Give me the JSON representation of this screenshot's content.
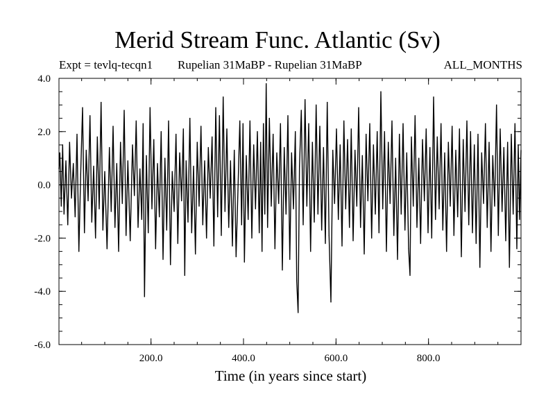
{
  "chart_data": {
    "type": "line",
    "title": "Merid Stream Func. Atlantic (Sv)",
    "subtitle_left": "Expt = tevlq-tecqn1",
    "subtitle_center": "Rupelian  31MaBP - Rupelian  31MaBP",
    "subtitle_right": "ALL_MONTHS",
    "xlabel": "Time (in years since start)",
    "ylabel": "",
    "xlim": [
      1,
      1000
    ],
    "ylim": [
      -6.0,
      4.0
    ],
    "xticks": [
      200,
      400,
      600,
      800
    ],
    "xtick_labels": [
      "200.0",
      "400.0",
      "600.0",
      "800.0"
    ],
    "yticks": [
      -6,
      -4,
      -2,
      0,
      2,
      4
    ],
    "ytick_labels": [
      "-6.0",
      "-4.0",
      "-2.0",
      "0.0",
      "2.0",
      "4.0"
    ],
    "reference_line_y": 0.0,
    "series": [
      {
        "name": "Merid Stream Func. Atlantic",
        "color": "#000000",
        "points": [
          [
            1,
            0.6
          ],
          [
            3,
            1.2
          ],
          [
            6,
            -0.8
          ],
          [
            9,
            1.5
          ],
          [
            12,
            -1.1
          ],
          [
            16,
            0.9
          ],
          [
            20,
            -1.5
          ],
          [
            24,
            1.6
          ],
          [
            28,
            -0.5
          ],
          [
            32,
            0.8
          ],
          [
            36,
            -1.2
          ],
          [
            40,
            1.9
          ],
          [
            44,
            -2.5
          ],
          [
            48,
            0.4
          ],
          [
            52,
            2.9
          ],
          [
            56,
            -1.8
          ],
          [
            60,
            1.3
          ],
          [
            64,
            -0.6
          ],
          [
            68,
            2.6
          ],
          [
            72,
            -1.4
          ],
          [
            76,
            0.7
          ],
          [
            80,
            -2.0
          ],
          [
            84,
            1.8
          ],
          [
            88,
            -0.9
          ],
          [
            92,
            3.1
          ],
          [
            96,
            -1.7
          ],
          [
            100,
            0.5
          ],
          [
            105,
            -2.4
          ],
          [
            110,
            1.4
          ],
          [
            114,
            -1.0
          ],
          [
            118,
            2.2
          ],
          [
            122,
            -1.6
          ],
          [
            126,
            0.8
          ],
          [
            130,
            -2.5
          ],
          [
            134,
            1.6
          ],
          [
            138,
            -0.7
          ],
          [
            142,
            2.8
          ],
          [
            146,
            -1.9
          ],
          [
            150,
            0.9
          ],
          [
            155,
            -2.1
          ],
          [
            160,
            1.5
          ],
          [
            164,
            -0.4
          ],
          [
            168,
            2.4
          ],
          [
            172,
            -1.6
          ],
          [
            176,
            0.6
          ],
          [
            180,
            -1.3
          ],
          [
            183,
            2.3
          ],
          [
            186,
            -4.2
          ],
          [
            190,
            1.1
          ],
          [
            194,
            -1.8
          ],
          [
            198,
            2.9
          ],
          [
            202,
            -0.9
          ],
          [
            206,
            1.7
          ],
          [
            210,
            -2.4
          ],
          [
            214,
            0.8
          ],
          [
            218,
            -1.2
          ],
          [
            222,
            2.0
          ],
          [
            226,
            -2.8
          ],
          [
            230,
            1.0
          ],
          [
            234,
            -1.7
          ],
          [
            238,
            2.4
          ],
          [
            242,
            -3.0
          ],
          [
            246,
            0.5
          ],
          [
            250,
            -1.0
          ],
          [
            254,
            1.9
          ],
          [
            258,
            -2.2
          ],
          [
            262,
            1.2
          ],
          [
            266,
            -0.6
          ],
          [
            270,
            2.1
          ],
          [
            273,
            -3.4
          ],
          [
            276,
            0.9
          ],
          [
            280,
            -1.4
          ],
          [
            284,
            2.5
          ],
          [
            288,
            -1.8
          ],
          [
            292,
            0.7
          ],
          [
            296,
            -2.6
          ],
          [
            300,
            1.6
          ],
          [
            304,
            -0.8
          ],
          [
            308,
            2.2
          ],
          [
            312,
            -1.5
          ],
          [
            316,
            0.9
          ],
          [
            320,
            -2.0
          ],
          [
            324,
            1.4
          ],
          [
            328,
            -0.5
          ],
          [
            332,
            1.8
          ],
          [
            336,
            -2.3
          ],
          [
            340,
            2.9
          ],
          [
            344,
            -1.2
          ],
          [
            348,
            2.6
          ],
          [
            352,
            -1.9
          ],
          [
            356,
            3.3
          ],
          [
            360,
            -1.0
          ],
          [
            364,
            2.1
          ],
          [
            368,
            -1.6
          ],
          [
            372,
            0.9
          ],
          [
            376,
            -2.3
          ],
          [
            380,
            1.3
          ],
          [
            384,
            -2.7
          ],
          [
            388,
            -0.2
          ],
          [
            392,
            2.4
          ],
          [
            396,
            -1.5
          ],
          [
            399,
            2.3
          ],
          [
            402,
            -2.9
          ],
          [
            406,
            1.1
          ],
          [
            410,
            -1.3
          ],
          [
            414,
            2.4
          ],
          [
            418,
            -2.0
          ],
          [
            422,
            1.5
          ],
          [
            426,
            -0.9
          ],
          [
            430,
            2.0
          ],
          [
            434,
            -1.8
          ],
          [
            437,
            1.6
          ],
          [
            440,
            -2.5
          ],
          [
            443,
            2.3
          ],
          [
            446,
            -1.1
          ],
          [
            449,
            3.8
          ],
          [
            452,
            -1.6
          ],
          [
            456,
            2.5
          ],
          [
            460,
            -0.8
          ],
          [
            464,
            1.9
          ],
          [
            468,
            -2.4
          ],
          [
            472,
            1.2
          ],
          [
            476,
            -0.7
          ],
          [
            480,
            2.3
          ],
          [
            484,
            -3.2
          ],
          [
            488,
            1.4
          ],
          [
            492,
            -1.1
          ],
          [
            496,
            2.6
          ],
          [
            500,
            -2.8
          ],
          [
            504,
            1.2
          ],
          [
            508,
            -0.9
          ],
          [
            512,
            2.0
          ],
          [
            515,
            -3.6
          ],
          [
            518,
            -4.8
          ],
          [
            521,
            0.7
          ],
          [
            525,
            2.8
          ],
          [
            529,
            -1.5
          ],
          [
            533,
            3.2
          ],
          [
            537,
            -0.8
          ],
          [
            541,
            2.3
          ],
          [
            545,
            -2.5
          ],
          [
            549,
            1.6
          ],
          [
            553,
            -1.4
          ],
          [
            557,
            3.0
          ],
          [
            561,
            -1.1
          ],
          [
            565,
            2.2
          ],
          [
            569,
            -1.7
          ],
          [
            573,
            1.4
          ],
          [
            577,
            -2.2
          ],
          [
            581,
            3.1
          ],
          [
            585,
            -1.9
          ],
          [
            589,
            -4.4
          ],
          [
            593,
            1.3
          ],
          [
            597,
            -0.7
          ],
          [
            601,
            2.1
          ],
          [
            605,
            -1.3
          ],
          [
            609,
            1.5
          ],
          [
            613,
            -2.3
          ],
          [
            617,
            2.4
          ],
          [
            621,
            -0.9
          ],
          [
            625,
            1.7
          ],
          [
            629,
            -1.6
          ],
          [
            633,
            2.1
          ],
          [
            637,
            -2.1
          ],
          [
            641,
            1.3
          ],
          [
            645,
            -0.8
          ],
          [
            649,
            2.9
          ],
          [
            653,
            -1.6
          ],
          [
            657,
            1.1
          ],
          [
            661,
            -2.6
          ],
          [
            665,
            1.9
          ],
          [
            669,
            -0.6
          ],
          [
            673,
            2.3
          ],
          [
            677,
            -2.0
          ],
          [
            681,
            1.5
          ],
          [
            685,
            -1.1
          ],
          [
            689,
            2.0
          ],
          [
            693,
            -1.8
          ],
          [
            697,
            3.5
          ],
          [
            701,
            -0.9
          ],
          [
            705,
            2.0
          ],
          [
            709,
            -2.5
          ],
          [
            713,
            1.6
          ],
          [
            717,
            -0.7
          ],
          [
            721,
            2.4
          ],
          [
            725,
            -1.9
          ],
          [
            729,
            1.0
          ],
          [
            733,
            -2.8
          ],
          [
            737,
            1.9
          ],
          [
            741,
            -1.1
          ],
          [
            745,
            2.3
          ],
          [
            749,
            -1.7
          ],
          [
            753,
            1.2
          ],
          [
            757,
            -2.4
          ],
          [
            760,
            -3.4
          ],
          [
            763,
            1.8
          ],
          [
            767,
            -0.8
          ],
          [
            771,
            2.6
          ],
          [
            775,
            -1.6
          ],
          [
            779,
            1.0
          ],
          [
            783,
            -2.2
          ],
          [
            787,
            1.7
          ],
          [
            791,
            -0.6
          ],
          [
            795,
            2.1
          ],
          [
            799,
            -1.8
          ],
          [
            803,
            1.4
          ],
          [
            807,
            -2.0
          ],
          [
            811,
            3.3
          ],
          [
            815,
            -1.3
          ],
          [
            819,
            1.8
          ],
          [
            823,
            -0.9
          ],
          [
            827,
            2.3
          ],
          [
            831,
            -1.7
          ],
          [
            835,
            1.2
          ],
          [
            839,
            -2.5
          ],
          [
            843,
            1.6
          ],
          [
            847,
            -0.8
          ],
          [
            851,
            2.2
          ],
          [
            855,
            -1.9
          ],
          [
            859,
            1.3
          ],
          [
            863,
            -1.2
          ],
          [
            867,
            2.1
          ],
          [
            871,
            -2.7
          ],
          [
            875,
            1.7
          ],
          [
            879,
            -1.0
          ],
          [
            883,
            2.4
          ],
          [
            887,
            -1.5
          ],
          [
            891,
            2.0
          ],
          [
            895,
            -1.8
          ],
          [
            899,
            1.5
          ],
          [
            903,
            -2.2
          ],
          [
            907,
            1.9
          ],
          [
            911,
            -3.1
          ],
          [
            915,
            1.2
          ],
          [
            919,
            -0.7
          ],
          [
            923,
            2.3
          ],
          [
            927,
            -1.6
          ],
          [
            931,
            1.6
          ],
          [
            935,
            -2.5
          ],
          [
            939,
            1.1
          ],
          [
            943,
            -0.8
          ],
          [
            947,
            3.0
          ],
          [
            951,
            -1.9
          ],
          [
            955,
            2.1
          ],
          [
            959,
            -1.0
          ],
          [
            963,
            1.4
          ],
          [
            967,
            -2.1
          ],
          [
            971,
            1.6
          ],
          [
            975,
            -3.1
          ],
          [
            979,
            1.9
          ],
          [
            983,
            -1.1
          ],
          [
            987,
            2.3
          ],
          [
            991,
            -2.4
          ],
          [
            994,
            1.5
          ],
          [
            997,
            -1.3
          ],
          [
            1000,
            1.3
          ]
        ]
      }
    ]
  }
}
